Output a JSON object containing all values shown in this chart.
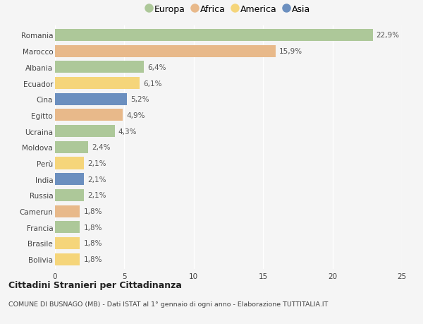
{
  "countries": [
    "Romania",
    "Marocco",
    "Albania",
    "Ecuador",
    "Cina",
    "Egitto",
    "Ucraina",
    "Moldova",
    "Perù",
    "India",
    "Russia",
    "Camerun",
    "Francia",
    "Brasile",
    "Bolivia"
  ],
  "values": [
    22.9,
    15.9,
    6.4,
    6.1,
    5.2,
    4.9,
    4.3,
    2.4,
    2.1,
    2.1,
    2.1,
    1.8,
    1.8,
    1.8,
    1.8
  ],
  "labels": [
    "22,9%",
    "15,9%",
    "6,4%",
    "6,1%",
    "5,2%",
    "4,9%",
    "4,3%",
    "2,4%",
    "2,1%",
    "2,1%",
    "2,1%",
    "1,8%",
    "1,8%",
    "1,8%",
    "1,8%"
  ],
  "continents": [
    "Europa",
    "Africa",
    "Europa",
    "America",
    "Asia",
    "Africa",
    "Europa",
    "Europa",
    "America",
    "Asia",
    "Europa",
    "Africa",
    "Europa",
    "America",
    "America"
  ],
  "continent_colors": {
    "Europa": "#adc899",
    "Africa": "#e8b98a",
    "America": "#f5d57a",
    "Asia": "#6b8fbf"
  },
  "legend_order": [
    "Europa",
    "Africa",
    "America",
    "Asia"
  ],
  "xlim": [
    0,
    25
  ],
  "xticks": [
    0,
    5,
    10,
    15,
    20,
    25
  ],
  "bg_color": "#f5f5f5",
  "title": "Cittadini Stranieri per Cittadinanza",
  "subtitle": "COMUNE DI BUSNAGO (MB) - Dati ISTAT al 1° gennaio di ogni anno - Elaborazione TUTTITALIA.IT",
  "bar_height": 0.75,
  "label_fontsize": 7.5,
  "tick_fontsize": 7.5
}
